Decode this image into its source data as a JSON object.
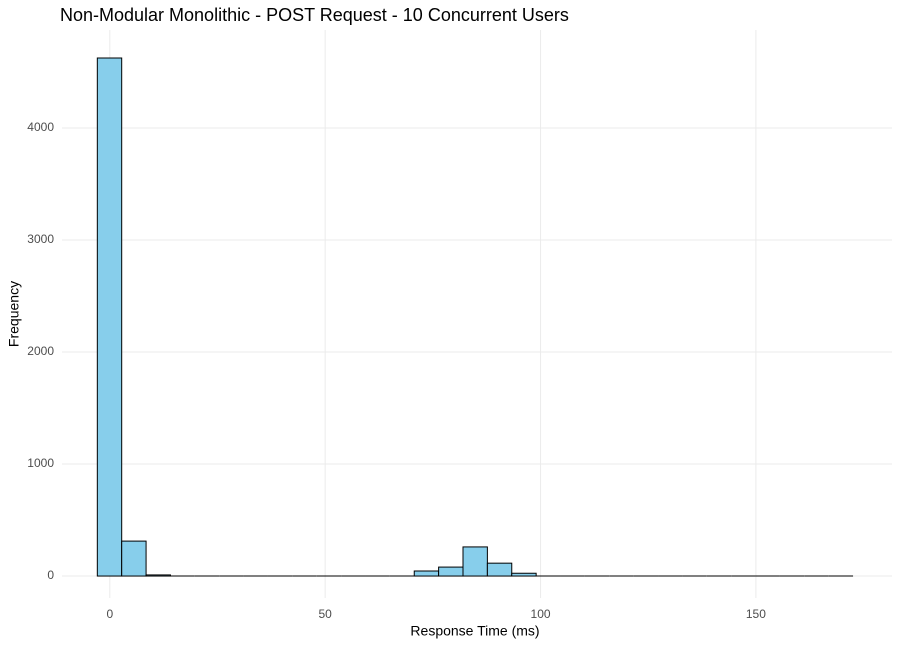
{
  "chart_data": {
    "type": "histogram",
    "title": "Non-Modular Monolithic - POST Request - 10 Concurrent Users",
    "x_label": "Response Time (ms)",
    "y_label": "Frequency",
    "bins": [
      -2.9,
      2.76,
      8.42,
      14.08,
      19.74,
      25.4,
      31.06,
      36.72,
      42.38,
      48.04,
      53.7,
      59.36,
      65.02,
      70.68,
      76.34,
      82.0,
      87.66,
      93.32,
      98.98,
      104.64,
      110.3,
      115.96,
      121.62,
      127.28,
      132.94,
      138.6,
      144.26,
      149.92,
      155.58,
      161.24,
      166.9,
      172.56
    ],
    "values": [
      4625,
      312,
      10,
      0,
      0,
      0,
      0,
      0,
      0,
      0,
      0,
      0,
      0,
      45,
      80,
      260,
      115,
      25,
      0,
      0,
      0,
      0,
      0,
      0,
      0,
      0,
      0,
      0,
      0,
      0,
      0
    ],
    "color": "#87ceeb",
    "edge_color": "#000000",
    "xlim": [
      -11.1,
      181.6
    ],
    "xticks": [
      0,
      50,
      100,
      150
    ],
    "ylim": [
      -196,
      4875
    ],
    "yticks": [
      0,
      1000,
      2000,
      3000,
      4000
    ],
    "grid": true
  }
}
